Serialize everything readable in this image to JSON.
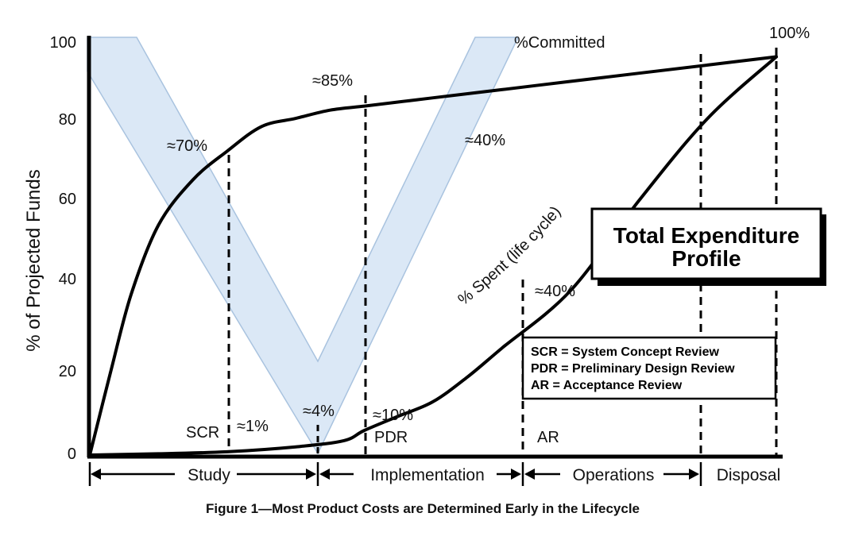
{
  "chart_data": {
    "type": "line",
    "title": "Total Expenditure Profile",
    "title_lines": [
      "Total Expenditure",
      "Profile"
    ],
    "caption": "Figure 1—Most Product Costs are Determined Early in the Lifecycle",
    "ylabel": "% of Projected Funds",
    "ylim": [
      0,
      100
    ],
    "yticks": [
      "0",
      "20",
      "40",
      "60",
      "80",
      "100"
    ],
    "grid": false,
    "series": [
      {
        "name": "%Committed",
        "x": [
          0,
          3,
          6,
          10,
          15,
          20,
          25,
          30,
          35,
          40,
          45,
          50,
          60,
          70,
          80,
          90,
          100
        ],
        "values": [
          0,
          20,
          39,
          56,
          67,
          74,
          80,
          82,
          84,
          85,
          86,
          87,
          89,
          91,
          93,
          95,
          97
        ]
      },
      {
        "name": "% Spent (life cycle)",
        "x": [
          0,
          10,
          20,
          30,
          37,
          40,
          45,
          50,
          55,
          60,
          70,
          80,
          90,
          100
        ],
        "values": [
          0,
          0.3,
          0.8,
          2,
          3.5,
          6,
          9.5,
          13,
          19,
          26,
          40,
          62,
          82,
          97
        ]
      }
    ],
    "milestones": [
      {
        "label": "SCR",
        "x": 23,
        "committed": "≈70%",
        "spent": "≈1%"
      },
      {
        "label": "",
        "x": 37,
        "committed": "",
        "spent": "≈4%"
      },
      {
        "label": "PDR",
        "x": 45,
        "committed": "≈85%",
        "spent": "≈10%"
      },
      {
        "label": "AR",
        "x": 70,
        "committed": "",
        "spent": "≈40%"
      },
      {
        "label": "",
        "x": 100,
        "committed": "100%",
        "spent": ""
      }
    ],
    "v_band_label": "≈40%",
    "phases": [
      {
        "name": "Study",
        "start": 0,
        "end": 37
      },
      {
        "name": "Implementation",
        "start": 37,
        "end": 70
      },
      {
        "name": "Operations",
        "start": 70,
        "end": 100
      }
    ],
    "extra_phase": "Disposal",
    "legend_box": [
      "SCR = System Concept Review",
      "PDR = Preliminary Design Review",
      "AR = Acceptance Review"
    ],
    "colors": {
      "band": "#dbe8f6",
      "band_edge": "#a9c3df",
      "curve": "#000000"
    }
  }
}
